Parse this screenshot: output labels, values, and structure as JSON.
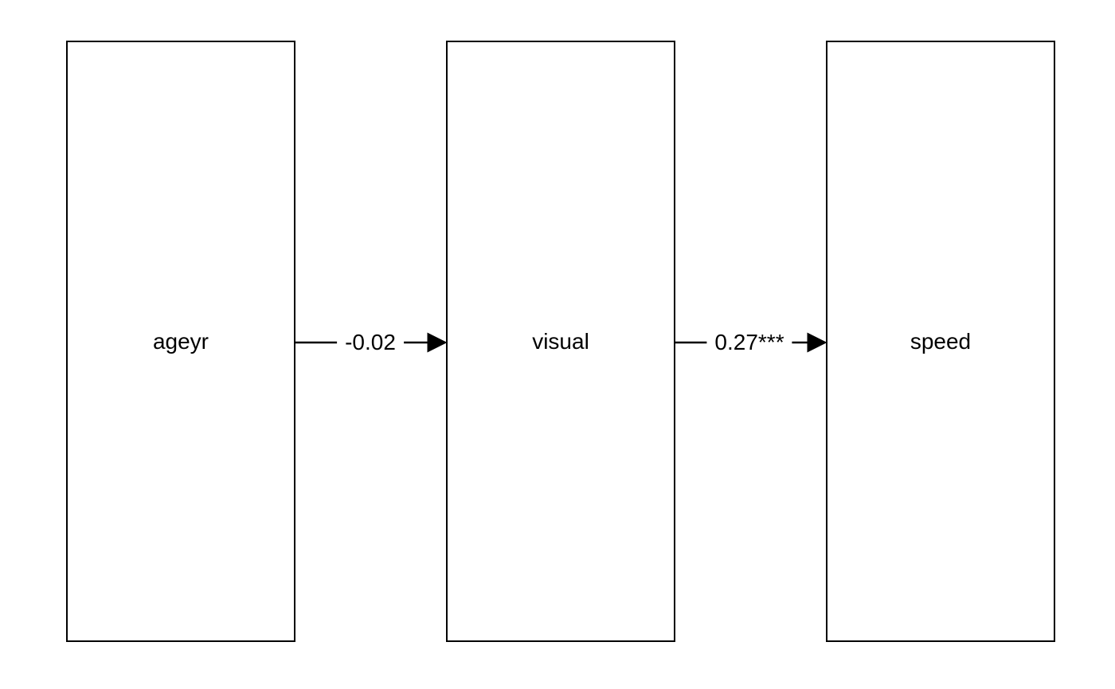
{
  "nodes": {
    "ageyr": "ageyr",
    "visual": "visual",
    "speed": "speed"
  },
  "edges": [
    {
      "from": "ageyr",
      "to": "visual",
      "label": "-0.02"
    },
    {
      "from": "visual",
      "to": "speed",
      "label": "0.27***"
    }
  ],
  "colors": {
    "stroke": "#000000",
    "background": "#ffffff"
  }
}
